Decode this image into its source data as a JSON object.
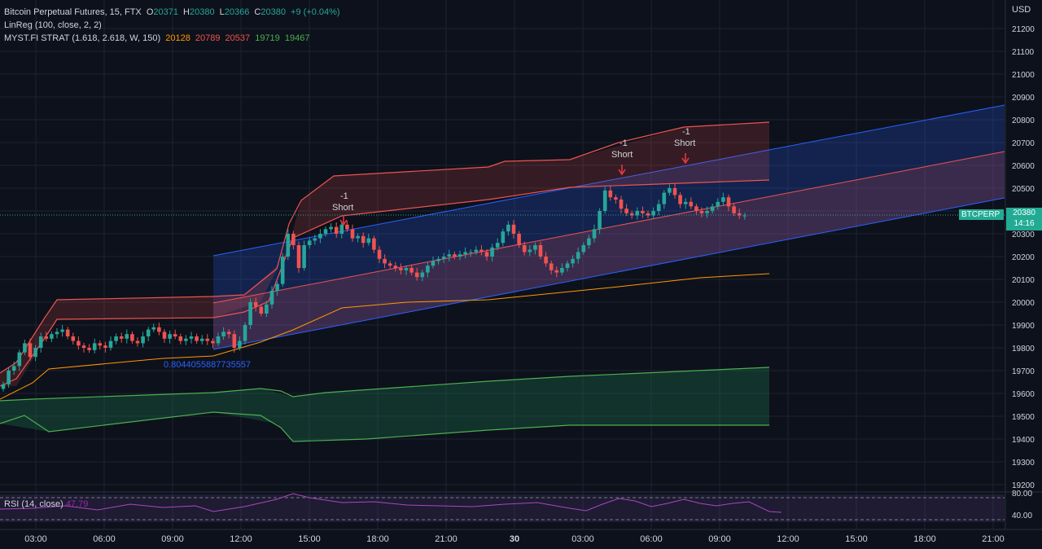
{
  "symbol_line": {
    "title": "Bitcoin Perpetual Futures, 15, FTX",
    "o_label": "O",
    "o": "20371",
    "h_label": "H",
    "h": "20380",
    "l_label": "L",
    "l": "20366",
    "c_label": "C",
    "c": "20380",
    "change": "+9 (+0.04%)"
  },
  "indicators": {
    "linreg": "LinReg (100, close, 2, 2)",
    "myst_label": "MYST.FI STRAT (1.618, 2.618, W, 150)",
    "myst_values": [
      "20128",
      "20789",
      "20537",
      "19719",
      "19467"
    ]
  },
  "currency": "USD",
  "price_axis": [
    "21200",
    "21100",
    "21000",
    "20900",
    "20800",
    "20700",
    "20600",
    "20500",
    "20400",
    "20300",
    "20200",
    "20100",
    "20000",
    "19900",
    "19800",
    "19700",
    "19600",
    "19500",
    "19400",
    "19300",
    "19200"
  ],
  "time_axis": [
    "03:00",
    "06:00",
    "09:00",
    "12:00",
    "15:00",
    "18:00",
    "21:00",
    "30",
    "03:00",
    "06:00",
    "09:00",
    "12:00",
    "15:00",
    "18:00",
    "21:00"
  ],
  "current_price": {
    "symbol": "BTCPERP",
    "price": "20380",
    "countdown": "14:16"
  },
  "annotations": {
    "pearson": "0.8044055887735557",
    "signals": [
      {
        "qty": "-1",
        "label": "Short"
      },
      {
        "qty": "-1",
        "label": "Short"
      },
      {
        "qty": "-1",
        "label": "Short"
      }
    ]
  },
  "rsi": {
    "label": "RSI (14, close)",
    "value": "47.79",
    "axis": [
      "80.00",
      "40.00"
    ]
  },
  "colors": {
    "up": "#26a69a",
    "down": "#ef5350",
    "accent": "#2962ff",
    "rsi": "#9c27b0"
  },
  "chart_data": {
    "type": "candlestick",
    "ylim": [
      19160,
      21260
    ],
    "closes": [
      19640,
      19700,
      19720,
      19780,
      19820,
      19760,
      19800,
      19850,
      19840,
      19860,
      19870,
      19880,
      19850,
      19830,
      19810,
      19800,
      19790,
      19820,
      19810,
      19800,
      19830,
      19850,
      19840,
      19860,
      19830,
      19820,
      19850,
      19880,
      19890,
      19870,
      19840,
      19860,
      19850,
      19830,
      19840,
      19850,
      19830,
      19840,
      19830,
      19820,
      19850,
      19870,
      19860,
      19800,
      19830,
      19900,
      20000,
      19980,
      19950,
      19990,
      20050,
      20080,
      20200,
      20300,
      20250,
      20150,
      20250,
      20270,
      20280,
      20300,
      20320,
      20330,
      20300,
      20340,
      20320,
      20280,
      20290,
      20260,
      20280,
      20230,
      20190,
      20170,
      20160,
      20150,
      20140,
      20150,
      20130,
      20110,
      20130,
      20160,
      20180,
      20190,
      20200,
      20210,
      20200,
      20210,
      20220,
      20220,
      20230,
      20220,
      20200,
      20240,
      20260,
      20310,
      20340,
      20300,
      20250,
      20220,
      20230,
      20250,
      20200,
      20170,
      20140,
      20130,
      20150,
      20170,
      20190,
      20220,
      20250,
      20280,
      20320,
      20400,
      20490,
      20460,
      20450,
      20410,
      20390,
      20380,
      20400,
      20390,
      20380,
      20400,
      20430,
      20480,
      20500,
      20470,
      20430,
      20440,
      20420,
      20400,
      20390,
      20400,
      20420,
      20440,
      20460,
      20420,
      20390,
      20380,
      20380
    ]
  }
}
